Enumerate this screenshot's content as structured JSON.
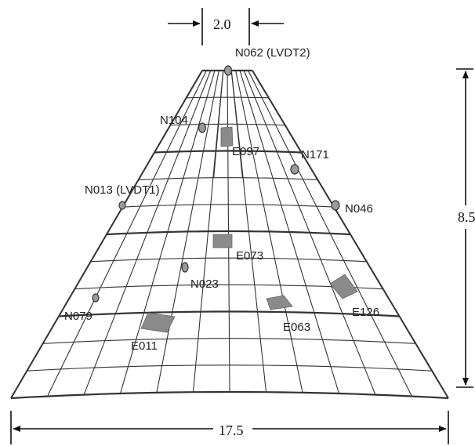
{
  "dimensions": {
    "top_width": "2.0",
    "height": "8.5",
    "base_width": "17.5"
  },
  "nodes": [
    {
      "id": "n062",
      "label": "N062 (LVDT2)"
    },
    {
      "id": "n104",
      "label": "N104"
    },
    {
      "id": "n171",
      "label": "N171"
    },
    {
      "id": "n013",
      "label": "N013 (LVDT1)"
    },
    {
      "id": "n046",
      "label": "N046"
    },
    {
      "id": "n023",
      "label": "N023"
    },
    {
      "id": "n079",
      "label": "N079"
    }
  ],
  "elements": [
    {
      "id": "e097",
      "label": "E097"
    },
    {
      "id": "e073",
      "label": "E073"
    },
    {
      "id": "e126",
      "label": "E126"
    },
    {
      "id": "e063",
      "label": "E063"
    },
    {
      "id": "e011",
      "label": "E011"
    }
  ],
  "colors": {
    "mesh_line": "#333333",
    "node_fill": "#9a9a9a",
    "element_fill": "#8a8a8a",
    "dimension_line": "#111111"
  }
}
